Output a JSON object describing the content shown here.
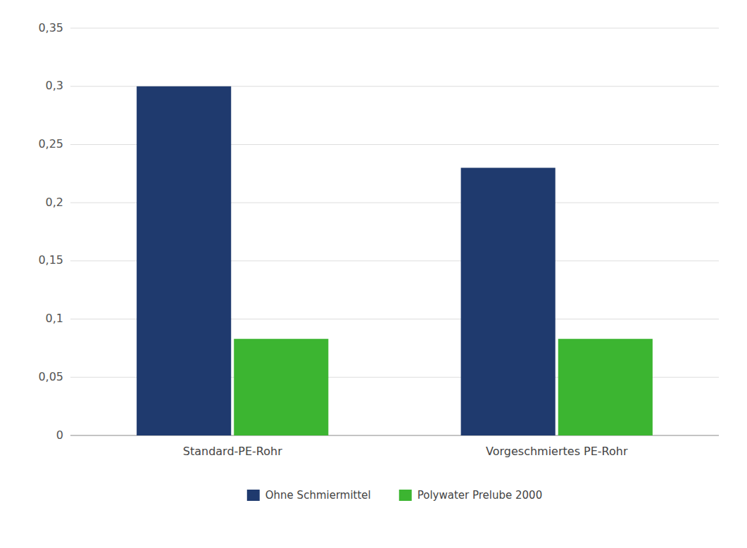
{
  "chart_data": {
    "type": "bar",
    "categories": [
      "Standard-PE-Rohr",
      "Vorgeschmiertes PE-Rohr"
    ],
    "series": [
      {
        "name": "Ohne Schmiermittel",
        "color": "#1F3A6E",
        "values": [
          0.3,
          0.23
        ]
      },
      {
        "name": "Polywater Prelube 2000",
        "color": "#3CB531",
        "values": [
          0.083,
          0.083
        ]
      }
    ],
    "ylim": [
      0,
      0.35
    ],
    "yticks": [
      0,
      {
        "value": 0.05,
        "label": "0,05"
      },
      {
        "value": 0.1,
        "label": "0,1"
      },
      {
        "value": 0.15,
        "label": "0,15"
      },
      {
        "value": 0.2,
        "label": "0,2"
      },
      {
        "value": 0.25,
        "label": "0,25"
      },
      {
        "value": 0.3,
        "label": "0,3"
      },
      {
        "value": 0.35,
        "label": "0,35"
      }
    ],
    "grid": true,
    "legend": "bottom"
  }
}
